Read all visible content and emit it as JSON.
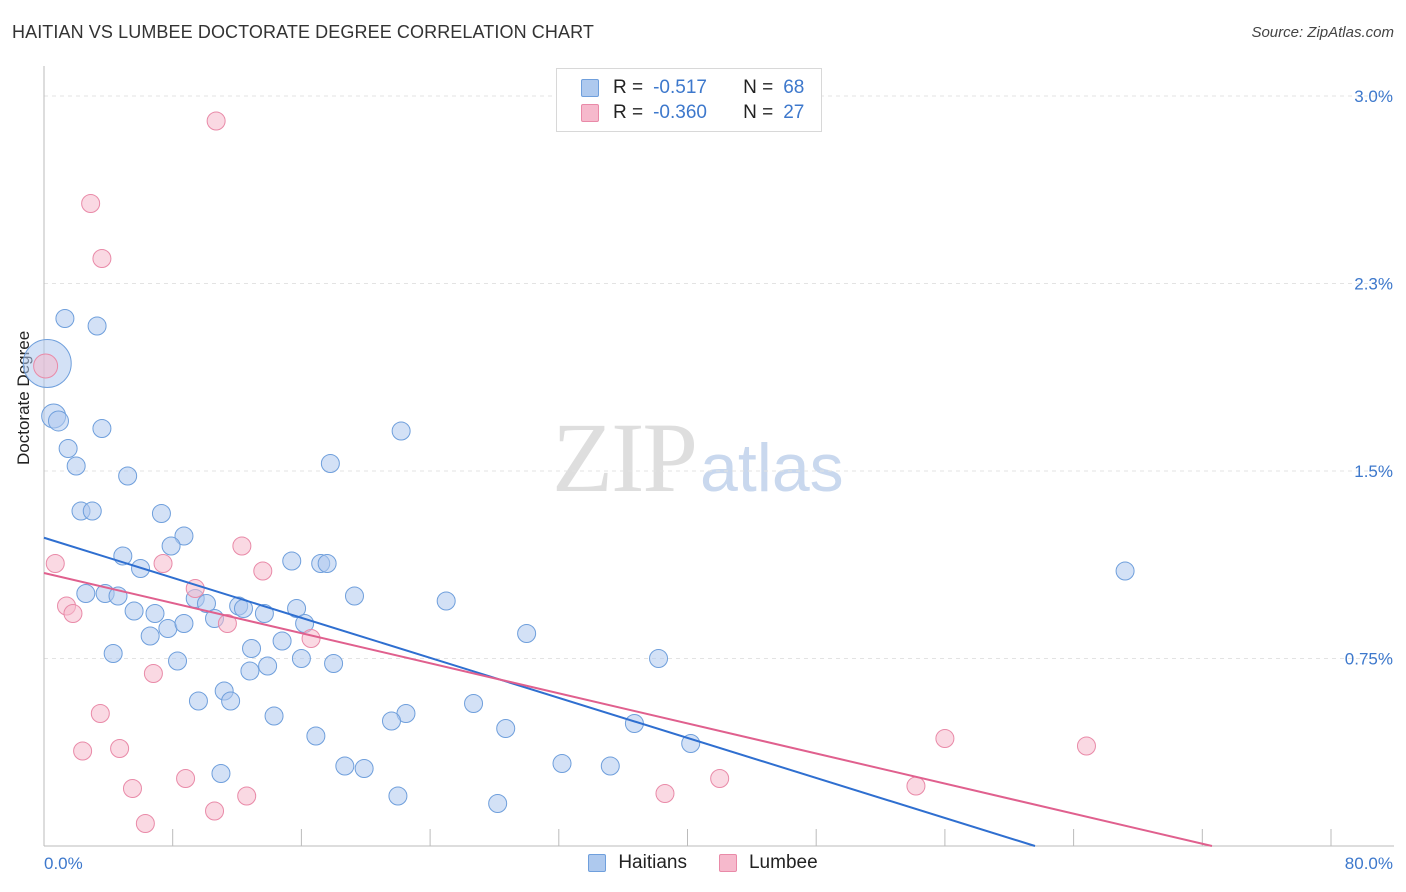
{
  "header": {
    "title": "HAITIAN VS LUMBEE DOCTORATE DEGREE CORRELATION CHART",
    "source": "Source: ZipAtlas.com"
  },
  "watermark": {
    "zip": "ZIP",
    "atlas": "atlas"
  },
  "legend": {
    "items": [
      {
        "r_label": "R =",
        "r_value": "-0.517",
        "n_label": "N =",
        "n_value": "68"
      },
      {
        "r_label": "R =",
        "r_value": "-0.360",
        "n_label": "N =",
        "n_value": "27"
      }
    ]
  },
  "bottom_legend": {
    "haitians": "Haitians",
    "lumbee": "Lumbee"
  },
  "colors": {
    "haitians_fill": "#aec9ee",
    "haitians_stroke": "#6f9fdc",
    "haitians_line": "#2f6fd0",
    "lumbee_fill": "#f6b9cc",
    "lumbee_stroke": "#e98aa8",
    "lumbee_line": "#e0608e",
    "tick_text": "#3d78cc"
  },
  "chart_data": {
    "type": "scatter",
    "title": "HAITIAN VS LUMBEE DOCTORATE DEGREE CORRELATION CHART",
    "ylabel": "Doctorate Degree",
    "xlabel": "",
    "xlim": [
      0,
      80
    ],
    "ylim": [
      0,
      3.0
    ],
    "x_tick_labels": [
      "0.0%",
      "80.0%"
    ],
    "y_ticks": [
      0.75,
      1.5,
      2.25,
      3.0
    ],
    "y_tick_labels": [
      "0.75%",
      "1.5%",
      "2.3%",
      "3.0%"
    ],
    "grid": "horizontal dashed",
    "legend_position": "top-center",
    "series": [
      {
        "name": "Haitians",
        "trend": {
          "x": [
            0,
            61.6
          ],
          "y": [
            1.233,
            0.0
          ]
        },
        "points": [
          [
            0.2,
            1.93,
            24
          ],
          [
            0.6,
            1.72,
            12
          ],
          [
            0.9,
            1.7,
            10
          ],
          [
            1.3,
            2.11,
            9
          ],
          [
            3.3,
            2.08,
            9
          ],
          [
            1.5,
            1.59,
            9
          ],
          [
            2.0,
            1.52,
            9
          ],
          [
            3.6,
            1.67,
            9
          ],
          [
            5.2,
            1.48,
            9
          ],
          [
            2.3,
            1.34,
            9
          ],
          [
            3.0,
            1.34,
            9
          ],
          [
            7.3,
            1.33,
            9
          ],
          [
            8.7,
            1.24,
            9
          ],
          [
            7.9,
            1.2,
            9
          ],
          [
            4.9,
            1.16,
            9
          ],
          [
            6.0,
            1.11,
            9
          ],
          [
            15.4,
            1.14,
            9
          ],
          [
            17.2,
            1.13,
            9
          ],
          [
            17.6,
            1.13,
            9
          ],
          [
            2.6,
            1.01,
            9
          ],
          [
            3.8,
            1.01,
            9
          ],
          [
            4.6,
            1.0,
            9
          ],
          [
            19.3,
            1.0,
            9
          ],
          [
            9.4,
            0.99,
            9
          ],
          [
            10.1,
            0.97,
            9
          ],
          [
            12.1,
            0.96,
            9
          ],
          [
            12.4,
            0.95,
            9
          ],
          [
            15.7,
            0.95,
            9
          ],
          [
            5.6,
            0.94,
            9
          ],
          [
            6.9,
            0.93,
            9
          ],
          [
            13.7,
            0.93,
            9
          ],
          [
            10.6,
            0.91,
            9
          ],
          [
            16.2,
            0.89,
            9
          ],
          [
            7.7,
            0.87,
            9
          ],
          [
            8.7,
            0.89,
            9
          ],
          [
            6.6,
            0.84,
            9
          ],
          [
            14.8,
            0.82,
            9
          ],
          [
            12.9,
            0.79,
            9
          ],
          [
            4.3,
            0.77,
            9
          ],
          [
            16.0,
            0.75,
            9
          ],
          [
            8.3,
            0.74,
            9
          ],
          [
            18.0,
            0.73,
            9
          ],
          [
            13.9,
            0.72,
            9
          ],
          [
            12.8,
            0.7,
            9
          ],
          [
            11.2,
            0.62,
            9
          ],
          [
            9.6,
            0.58,
            9
          ],
          [
            11.6,
            0.58,
            9
          ],
          [
            26.7,
            0.57,
            9
          ],
          [
            22.5,
            0.53,
            9
          ],
          [
            14.3,
            0.52,
            9
          ],
          [
            21.6,
            0.5,
            9
          ],
          [
            36.7,
            0.49,
            9
          ],
          [
            28.7,
            0.47,
            9
          ],
          [
            16.9,
            0.44,
            9
          ],
          [
            40.2,
            0.41,
            9
          ],
          [
            32.2,
            0.33,
            9
          ],
          [
            35.2,
            0.32,
            9
          ],
          [
            18.7,
            0.32,
            9
          ],
          [
            19.9,
            0.31,
            9
          ],
          [
            11.0,
            0.29,
            9
          ],
          [
            22.0,
            0.2,
            9
          ],
          [
            28.2,
            0.17,
            9
          ],
          [
            22.2,
            1.66,
            9
          ],
          [
            17.8,
            1.53,
            9
          ],
          [
            67.2,
            1.1,
            9
          ],
          [
            38.2,
            0.75,
            9
          ],
          [
            25.0,
            0.98,
            9
          ],
          [
            30.0,
            0.85,
            9
          ]
        ]
      },
      {
        "name": "Lumbee",
        "trend": {
          "x": [
            0,
            72.6
          ],
          "y": [
            1.092,
            0.0
          ]
        },
        "points": [
          [
            0.1,
            1.92,
            12
          ],
          [
            10.7,
            2.9,
            9
          ],
          [
            2.9,
            2.57,
            9
          ],
          [
            3.6,
            2.35,
            9
          ],
          [
            0.7,
            1.13,
            9
          ],
          [
            7.4,
            1.13,
            9
          ],
          [
            12.3,
            1.2,
            9
          ],
          [
            13.6,
            1.1,
            9
          ],
          [
            1.4,
            0.96,
            9
          ],
          [
            1.8,
            0.93,
            9
          ],
          [
            9.4,
            1.03,
            9
          ],
          [
            11.4,
            0.89,
            9
          ],
          [
            16.6,
            0.83,
            9
          ],
          [
            6.8,
            0.69,
            9
          ],
          [
            3.5,
            0.53,
            9
          ],
          [
            2.4,
            0.38,
            9
          ],
          [
            4.7,
            0.39,
            9
          ],
          [
            8.8,
            0.27,
            9
          ],
          [
            5.5,
            0.23,
            9
          ],
          [
            12.6,
            0.2,
            9
          ],
          [
            6.3,
            0.09,
            9
          ],
          [
            10.6,
            0.14,
            9
          ],
          [
            38.6,
            0.21,
            9
          ],
          [
            42.0,
            0.27,
            9
          ],
          [
            54.2,
            0.24,
            9
          ],
          [
            56.0,
            0.43,
            9
          ],
          [
            64.8,
            0.4,
            9
          ]
        ]
      }
    ]
  }
}
